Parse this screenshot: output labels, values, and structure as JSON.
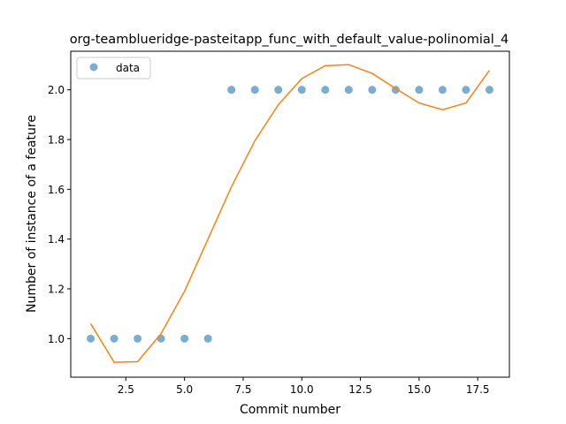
{
  "chart_data": {
    "type": "scatter",
    "title": "org-teamblueridge-pasteitapp_func_with_default_value-polinomial_4",
    "xlabel": "Commit number",
    "ylabel": "Number of instance of a feature",
    "xlim": [
      0.15,
      18.85
    ],
    "ylim": [
      0.845,
      2.155
    ],
    "x_ticks": [
      2.5,
      5.0,
      7.5,
      10.0,
      12.5,
      15.0,
      17.5
    ],
    "x_tick_labels": [
      "2.5",
      "5.0",
      "7.5",
      "10.0",
      "12.5",
      "15.0",
      "17.5"
    ],
    "y_ticks": [
      1.0,
      1.2,
      1.4,
      1.6,
      1.8,
      2.0
    ],
    "y_tick_labels": [
      "1.0",
      "1.2",
      "1.4",
      "1.6",
      "1.8",
      "2.0"
    ],
    "grid": false,
    "legend": {
      "placement": "top-left",
      "entries": [
        "data"
      ]
    },
    "series": [
      {
        "name": "data",
        "kind": "scatter",
        "color": "#1f77b4",
        "x": [
          1,
          2,
          3,
          4,
          5,
          6,
          7,
          8,
          9,
          10,
          11,
          12,
          13,
          14,
          15,
          16,
          17,
          18
        ],
        "y": [
          1,
          1,
          1,
          1,
          1,
          1,
          2,
          2,
          2,
          2,
          2,
          2,
          2,
          2,
          2,
          2,
          2,
          2
        ]
      },
      {
        "kind": "line",
        "color": "#ff7f0e",
        "x": [
          1,
          2,
          3,
          4,
          5,
          6,
          7,
          8,
          9,
          10,
          11,
          12,
          13,
          14,
          15,
          16,
          17,
          18
        ],
        "y": [
          1.06,
          0.905,
          0.907,
          1.02,
          1.19,
          1.4,
          1.61,
          1.795,
          1.94,
          2.045,
          2.097,
          2.101,
          2.066,
          2.005,
          1.947,
          1.92,
          1.947,
          2.078
        ]
      }
    ]
  }
}
